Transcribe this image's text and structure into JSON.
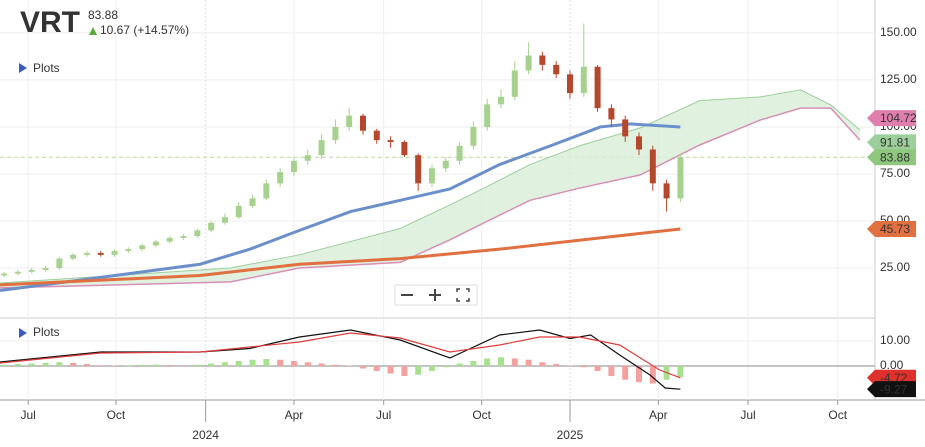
{
  "chart_data": [
    {
      "type": "candlestick",
      "title": "VRT",
      "price": 83.88,
      "change": "10.67 (+14.57%)",
      "legend": "Plots",
      "xlim": [
        -0.3,
        63.1
      ],
      "xticks": [
        {
          "value": 1.74,
          "label": "Jul"
        },
        {
          "value": 8.1,
          "label": "Oct"
        },
        {
          "value": 21.0,
          "label": "Apr"
        },
        {
          "value": 27.5,
          "label": "Jul"
        },
        {
          "value": 34.6,
          "label": "Oct"
        },
        {
          "value": 47.4,
          "label": "Apr"
        },
        {
          "value": 53.9,
          "label": "Jul"
        },
        {
          "value": 60.4,
          "label": "Oct"
        }
      ],
      "year_ticks": [
        {
          "value": 14.6,
          "label": "2024"
        },
        {
          "value": 41.0,
          "label": "2025"
        }
      ],
      "ylim": [
        0,
        167.5
      ],
      "yticks": [
        {
          "value": 25,
          "label": "25.00"
        },
        {
          "value": 50,
          "label": "50.00"
        },
        {
          "value": 75,
          "label": "75.00"
        },
        {
          "value": 100,
          "label": "100.00"
        },
        {
          "value": 125,
          "label": "125.00"
        },
        {
          "value": 150,
          "label": "150.00"
        }
      ],
      "up_color": "#a7d18e",
      "down_color": "#b5472c",
      "open": [
        21,
        22,
        23,
        24,
        25,
        30,
        32,
        33,
        32,
        34,
        35,
        37,
        39,
        41,
        42,
        45,
        49,
        52,
        58,
        62,
        70,
        76,
        82,
        85,
        93,
        100,
        106,
        98,
        93,
        92,
        85,
        70,
        78,
        82,
        90,
        100,
        112,
        116,
        130,
        138,
        133,
        128,
        118,
        132,
        110,
        104,
        95,
        88,
        70,
        62
      ],
      "high": [
        23,
        24,
        25,
        26,
        31,
        33,
        34,
        34,
        35,
        36,
        38,
        40,
        42,
        43,
        46,
        50,
        54,
        60,
        64,
        72,
        78,
        84,
        88,
        96,
        104,
        110,
        107,
        99,
        95,
        93,
        86,
        80,
        84,
        92,
        103,
        115,
        120,
        135,
        145,
        140,
        135,
        130,
        155,
        133,
        112,
        106,
        97,
        90,
        72,
        86
      ],
      "low": [
        20,
        21,
        22,
        23,
        24,
        29,
        31,
        31,
        31,
        33,
        34,
        36,
        38,
        40,
        41,
        44,
        48,
        51,
        57,
        61,
        68,
        74,
        80,
        83,
        91,
        98,
        96,
        91,
        89,
        84,
        66,
        68,
        76,
        80,
        88,
        98,
        110,
        114,
        128,
        130,
        126,
        115,
        116,
        108,
        100,
        92,
        85,
        66,
        55,
        60
      ],
      "close": [
        22,
        23,
        24,
        25,
        30,
        32,
        33,
        32,
        34,
        35,
        37,
        39,
        41,
        42,
        45,
        49,
        52,
        58,
        62,
        70,
        76,
        82,
        85,
        93,
        100,
        106,
        98,
        93,
        92,
        85,
        70,
        78,
        82,
        90,
        100,
        112,
        116,
        130,
        138,
        133,
        128,
        118,
        132,
        110,
        104,
        95,
        88,
        70,
        62,
        83.88
      ],
      "cloud": {
        "fill": "#d8eed8",
        "upper_color": "#9ccf9c",
        "lower_color": "#d98fb5",
        "x": [
          -0.3,
          16.4,
          21.4,
          28.7,
          32.3,
          34.5,
          38.1,
          41.7,
          46.1,
          50.4,
          54.8,
          57.7,
          59.9,
          62.0
        ],
        "upper": [
          17,
          25,
          32,
          46,
          58.5,
          66.5,
          80,
          90,
          99.5,
          114,
          116,
          119.7,
          111.7,
          98.4
        ],
        "lower": [
          14.4,
          17.6,
          25,
          28,
          40,
          48,
          61,
          67.5,
          74.5,
          90.4,
          103.7,
          110,
          110,
          93
        ]
      },
      "series": [
        {
          "color": "#6a8fca",
          "x": [
            -0.3,
            7,
            14.2,
            17.8,
            21.4,
            25.1,
            28.7,
            32.3,
            35.9,
            39.6,
            43.2,
            45.4,
            49
          ],
          "values": [
            13,
            20,
            27,
            35,
            45,
            55,
            61,
            67,
            80,
            90,
            100,
            101.6,
            100
          ]
        },
        {
          "color": "#e07040",
          "x": [
            -0.3,
            14.2,
            21.4,
            28.7,
            35.9,
            43.2,
            49
          ],
          "values": [
            16,
            21,
            27,
            30,
            35,
            41,
            45.73
          ]
        }
      ],
      "badges": [
        {
          "value": 104.72,
          "color": "#e07fae",
          "text_color": "#333"
        },
        {
          "value": 91.81,
          "color": "#9ccf9c",
          "text_color": "#333"
        },
        {
          "value": 83.88,
          "color": "#8fc77f",
          "text_color": "#333",
          "dashed": true
        },
        {
          "value": 45.73,
          "color": "#e07040",
          "text_color": "#333"
        }
      ]
    },
    {
      "type": "macd",
      "legend": "Plots",
      "xlim": [
        -0.3,
        63.1
      ],
      "ylim": [
        -13.6,
        16.4
      ],
      "yticks": [
        {
          "value": 10,
          "label": "10.00"
        },
        {
          "value": 0,
          "label": "0.00"
        }
      ],
      "up_color": "#a7e08e",
      "down_color": "#f3a0a0",
      "histogram": [
        0.5,
        0.8,
        1,
        1.2,
        1.5,
        1.2,
        0.8,
        0.3,
        0.2,
        0.3,
        0.5,
        0.6,
        0.4,
        0.3,
        0.5,
        1,
        1.5,
        2,
        2.5,
        2.8,
        2.5,
        2,
        1.5,
        1,
        0.5,
        0.2,
        -1,
        -2,
        -3,
        -4,
        -3.5,
        -2,
        -0.5,
        1,
        2,
        3,
        3.5,
        3,
        2.5,
        1.5,
        0.8,
        0.2,
        -0.5,
        -2,
        -4,
        -5.5,
        -6.5,
        -7,
        -5.5,
        -4.5
      ],
      "series": [
        {
          "color": "#111",
          "x": [
            -0.3,
            7,
            14.2,
            17.8,
            21.4,
            25.1,
            28.7,
            32.3,
            35.9,
            38.8,
            41,
            42.5,
            44.6,
            46.8,
            47.9,
            49
          ],
          "values": [
            1.6,
            5.6,
            5.6,
            7,
            11.6,
            14.4,
            10.4,
            3.2,
            12.4,
            14.4,
            11,
            12.4,
            4.4,
            -3.6,
            -8.8,
            -9.27
          ]
        },
        {
          "color": "#e03c3c",
          "x": [
            -0.3,
            7,
            14.2,
            21.4,
            25.1,
            28.7,
            32.3,
            35.9,
            38.8,
            41.7,
            44.6,
            47.5,
            49
          ],
          "values": [
            1.2,
            5.2,
            5.6,
            9.6,
            13.2,
            11.2,
            5.6,
            8.4,
            11.6,
            11.6,
            8.4,
            -1.6,
            -4.72
          ]
        }
      ],
      "badges": [
        {
          "value": -4.72,
          "color": "#e0302c",
          "text_color": "#fff"
        },
        {
          "value": -9.27,
          "color": "#111",
          "text_color": "#fff"
        }
      ]
    }
  ]
}
